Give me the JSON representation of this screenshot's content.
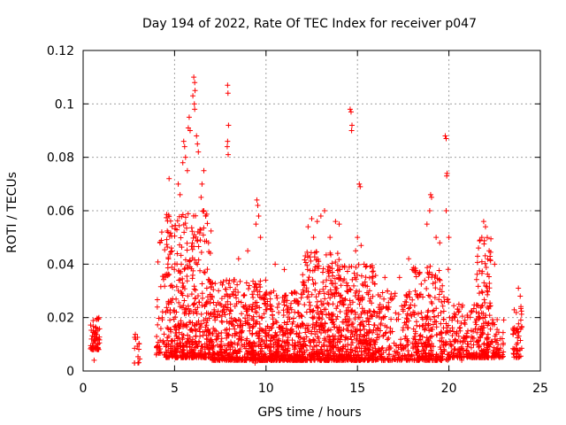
{
  "chart_data": {
    "type": "scatter",
    "title": "Day 194 of 2022, Rate Of TEC Index for receiver p047",
    "xlabel": "GPS time / hours",
    "ylabel": "ROTI / TECUs",
    "xlim": [
      0,
      25
    ],
    "ylim": [
      0,
      0.12
    ],
    "x_ticks": [
      0,
      5,
      10,
      15,
      20,
      25
    ],
    "x_tick_labels": [
      "0",
      "5",
      "10",
      "15",
      "20",
      "25"
    ],
    "y_ticks": [
      0,
      0.02,
      0.04,
      0.06,
      0.08,
      0.1,
      0.12
    ],
    "y_tick_labels": [
      "0",
      "0.02",
      "0.04",
      "0.06",
      "0.08",
      "0.1",
      "0.12"
    ],
    "grid": true,
    "marker": "plus",
    "marker_color": "#ff0000",
    "clusters": [
      {
        "x_range": [
          0.4,
          0.9
        ],
        "y_range": [
          0.008,
          0.02
        ],
        "density": 60
      },
      {
        "x_range": [
          2.8,
          3.1
        ],
        "y_range": [
          0.003,
          0.016
        ],
        "density": 15
      },
      {
        "x_range": [
          4.0,
          4.5
        ],
        "y_range": [
          0.006,
          0.05
        ],
        "density": 40
      },
      {
        "x_range": [
          4.5,
          7.0
        ],
        "y_range": [
          0.005,
          0.06
        ],
        "density": 500
      },
      {
        "x_range": [
          7.0,
          10.0
        ],
        "y_range": [
          0.004,
          0.035
        ],
        "density": 500
      },
      {
        "x_range": [
          10.0,
          12.0
        ],
        "y_range": [
          0.004,
          0.03
        ],
        "density": 350
      },
      {
        "x_range": [
          12.0,
          14.0
        ],
        "y_range": [
          0.004,
          0.045
        ],
        "density": 400
      },
      {
        "x_range": [
          14.0,
          16.0
        ],
        "y_range": [
          0.004,
          0.04
        ],
        "density": 380
      },
      {
        "x_range": [
          16.0,
          18.0
        ],
        "y_range": [
          0.004,
          0.03
        ],
        "density": 200
      },
      {
        "x_range": [
          18.0,
          20.0
        ],
        "y_range": [
          0.004,
          0.04
        ],
        "density": 280
      },
      {
        "x_range": [
          20.0,
          21.5
        ],
        "y_range": [
          0.005,
          0.025
        ],
        "density": 150
      },
      {
        "x_range": [
          21.5,
          22.3
        ],
        "y_range": [
          0.005,
          0.05
        ],
        "density": 150
      },
      {
        "x_range": [
          22.3,
          23.0
        ],
        "y_range": [
          0.005,
          0.02
        ],
        "density": 60
      },
      {
        "x_range": [
          23.5,
          24.0
        ],
        "y_range": [
          0.005,
          0.025
        ],
        "density": 50
      }
    ],
    "spikes": [
      [
        6.05,
        0.11
      ],
      [
        6.1,
        0.108
      ],
      [
        6.12,
        0.105
      ],
      [
        6.0,
        0.103
      ],
      [
        6.08,
        0.1
      ],
      [
        6.1,
        0.098
      ],
      [
        7.9,
        0.107
      ],
      [
        7.92,
        0.104
      ],
      [
        7.95,
        0.092
      ],
      [
        7.9,
        0.086
      ],
      [
        7.88,
        0.084
      ],
      [
        7.93,
        0.081
      ],
      [
        5.5,
        0.086
      ],
      [
        5.55,
        0.084
      ],
      [
        5.6,
        0.08
      ],
      [
        5.45,
        0.078
      ],
      [
        5.7,
        0.075
      ],
      [
        5.75,
        0.091
      ],
      [
        5.8,
        0.095
      ],
      [
        5.85,
        0.09
      ],
      [
        6.2,
        0.088
      ],
      [
        6.25,
        0.085
      ],
      [
        6.3,
        0.082
      ],
      [
        4.7,
        0.072
      ],
      [
        5.2,
        0.07
      ],
      [
        5.3,
        0.066
      ],
      [
        6.5,
        0.07
      ],
      [
        6.6,
        0.075
      ],
      [
        6.45,
        0.065
      ],
      [
        14.6,
        0.098
      ],
      [
        14.65,
        0.097
      ],
      [
        14.7,
        0.092
      ],
      [
        14.68,
        0.09
      ],
      [
        15.1,
        0.07
      ],
      [
        15.15,
        0.069
      ],
      [
        19.8,
        0.088
      ],
      [
        19.85,
        0.087
      ],
      [
        19.9,
        0.074
      ],
      [
        19.88,
        0.073
      ],
      [
        19.85,
        0.06
      ],
      [
        19.0,
        0.066
      ],
      [
        19.05,
        0.065
      ],
      [
        18.95,
        0.06
      ],
      [
        9.5,
        0.064
      ],
      [
        9.55,
        0.062
      ],
      [
        9.6,
        0.058
      ],
      [
        9.45,
        0.055
      ],
      [
        9.7,
        0.05
      ],
      [
        12.5,
        0.057
      ],
      [
        12.8,
        0.056
      ],
      [
        13.0,
        0.058
      ],
      [
        12.3,
        0.054
      ],
      [
        13.5,
        0.05
      ],
      [
        13.8,
        0.056
      ],
      [
        14.0,
        0.055
      ],
      [
        13.2,
        0.06
      ],
      [
        12.6,
        0.05
      ],
      [
        15.0,
        0.05
      ],
      [
        15.2,
        0.047
      ],
      [
        14.9,
        0.045
      ],
      [
        18.8,
        0.055
      ],
      [
        19.3,
        0.05
      ],
      [
        19.5,
        0.048
      ],
      [
        20.0,
        0.05
      ],
      [
        21.9,
        0.056
      ],
      [
        22.0,
        0.054
      ],
      [
        21.8,
        0.05
      ],
      [
        22.2,
        0.045
      ],
      [
        22.5,
        0.04
      ],
      [
        17.8,
        0.042
      ],
      [
        18.0,
        0.038
      ],
      [
        23.8,
        0.031
      ],
      [
        23.9,
        0.028
      ],
      [
        6.6,
        0.06
      ],
      [
        6.7,
        0.058
      ],
      [
        4.3,
        0.052
      ],
      [
        4.2,
        0.048
      ],
      [
        8.5,
        0.042
      ],
      [
        9.0,
        0.045
      ],
      [
        10.5,
        0.04
      ],
      [
        11.0,
        0.038
      ],
      [
        16.5,
        0.035
      ],
      [
        17.3,
        0.035
      ],
      [
        9.4,
        0.003
      ],
      [
        20.7,
        0.004
      ],
      [
        0.6,
        0.004
      ]
    ],
    "random_seed": 194
  }
}
